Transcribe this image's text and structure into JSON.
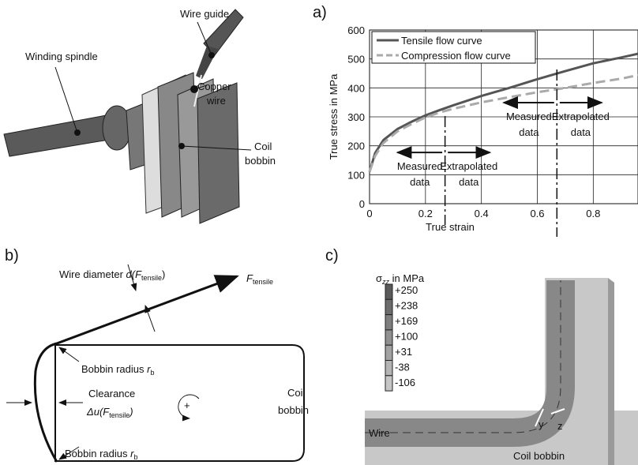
{
  "figure": {
    "machine": {
      "wire_guide": "Wire guide",
      "winding_spindle": "Winding spindle",
      "copper_wire": [
        "Copper",
        "wire"
      ],
      "coil_bobbin": [
        "Coil",
        "bobbin"
      ]
    },
    "panel_b": {
      "label": "b)",
      "wire_diameter": [
        "Wire diameter ",
        "d(F",
        "tensile",
        ")"
      ],
      "force": [
        "F",
        "tensile"
      ],
      "bobbin_radius_top": [
        "Bobbin radius ",
        "r",
        "b"
      ],
      "clearance": "Clearance",
      "delta_u": [
        "Δu(F",
        "tensile",
        ")"
      ],
      "bobbin_radius_bottom": [
        "Bobbin radius ",
        "r",
        "b"
      ],
      "rotation": "+",
      "coil_bobbin": [
        "Coil",
        "bobbin"
      ]
    },
    "panel_c": {
      "label": "c)",
      "colorbar_title": [
        "σ",
        "zz",
        " in MPa"
      ],
      "colorbar_labels": [
        "+250",
        "+238",
        "+169",
        "+100",
        "+31",
        "-38",
        "-106"
      ],
      "wire": "Wire",
      "coil_bobbin": "Coil bobbin",
      "axis_y": "y",
      "axis_z": "z"
    }
  },
  "chart_data": {
    "type": "line",
    "panel_label": "a)",
    "x_label": "True strain",
    "y_label": "True stress in MPa",
    "x": [
      0,
      0.02,
      0.05,
      0.1,
      0.15,
      0.2,
      0.25,
      0.3,
      0.4,
      0.5,
      0.6,
      0.7,
      0.8,
      0.9,
      0.96
    ],
    "series": [
      {
        "name": "Tensile flow curve",
        "color": "#555555",
        "dashed": false,
        "values": [
          110,
          175,
          220,
          258,
          283,
          305,
          323,
          340,
          372,
          400,
          430,
          458,
          485,
          505,
          518
        ]
      },
      {
        "name": "Compression flow curve",
        "color": "#aaaaaa",
        "dashed": true,
        "values": [
          110,
          165,
          210,
          250,
          275,
          298,
          315,
          328,
          350,
          368,
          385,
          400,
          417,
          432,
          444
        ]
      }
    ],
    "xlim": [
      0,
      0.96
    ],
    "ylim": [
      0,
      600
    ],
    "xticks": [
      0,
      0.2,
      0.4,
      0.6,
      0.8
    ],
    "yticks": [
      0,
      100,
      200,
      300,
      400,
      500,
      600
    ],
    "grid": true,
    "legend": "upper left",
    "vlines": [
      0.27,
      0.67
    ],
    "annotations": [
      {
        "x_from": 0.26,
        "x_to": 0.1,
        "y": 177,
        "lines": [
          "Measured",
          "data"
        ]
      },
      {
        "x_from": 0.28,
        "x_to": 0.43,
        "y": 177,
        "lines": [
          "Extrapolated",
          "data"
        ]
      },
      {
        "x_from": 0.66,
        "x_to": 0.48,
        "y": 349,
        "lines": [
          "Measured",
          "data"
        ]
      },
      {
        "x_from": 0.68,
        "x_to": 0.83,
        "y": 349,
        "lines": [
          "Extrapolated",
          "data"
        ]
      }
    ]
  }
}
